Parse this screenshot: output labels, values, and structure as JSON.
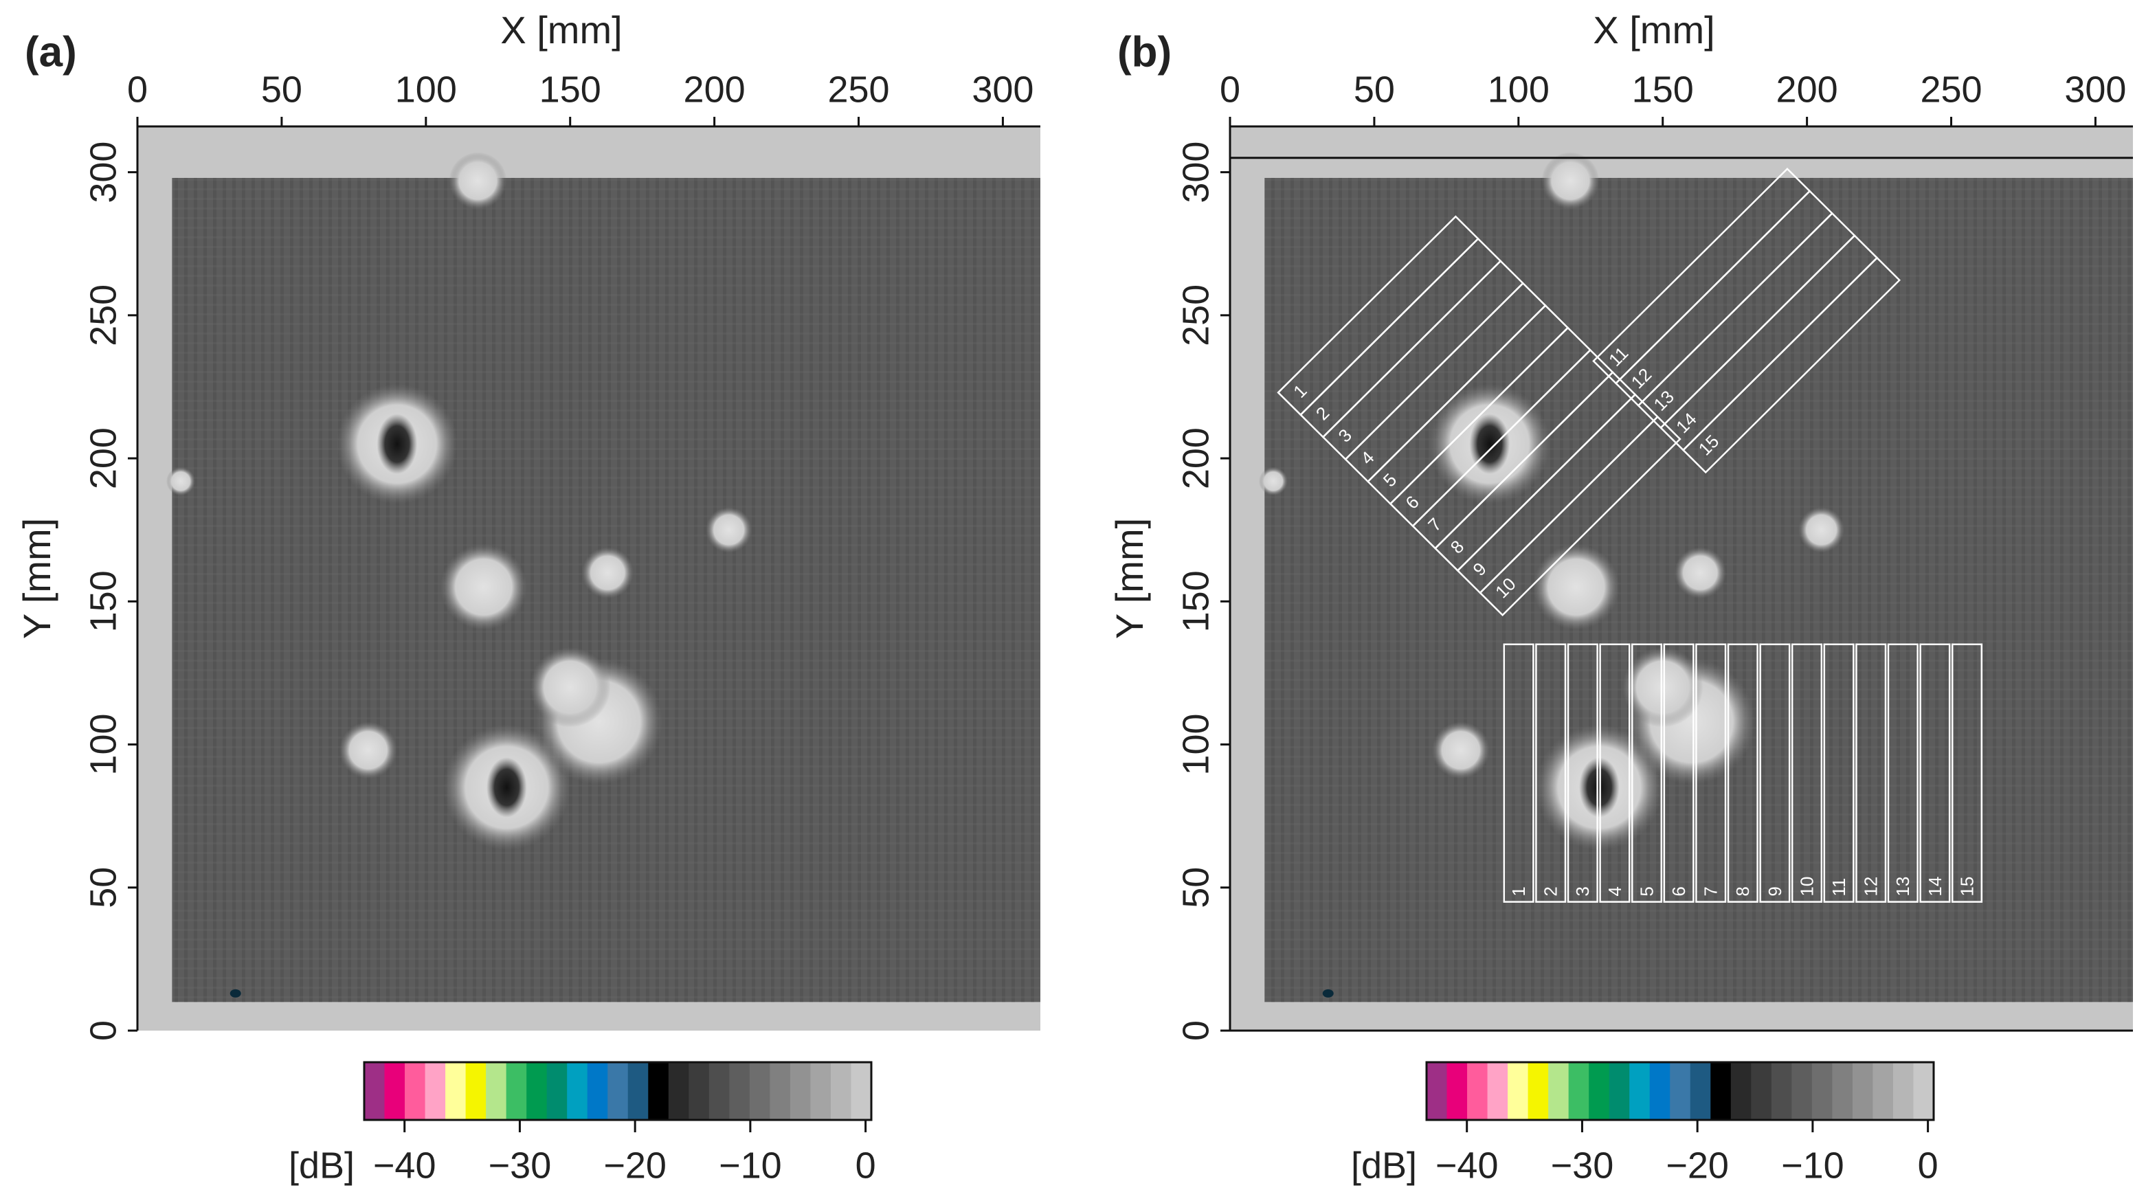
{
  "chart_data": [
    {
      "type": "image",
      "panel_label": "(a)",
      "xlabel": "X [mm]",
      "ylabel": "Y [mm]",
      "xlim": [
        0,
        313
      ],
      "ylim": [
        0,
        316
      ],
      "xticks": [
        0,
        50,
        100,
        150,
        200,
        250,
        300
      ],
      "yticks": [
        0,
        50,
        100,
        150,
        200,
        250,
        300
      ],
      "colorbar_label": "[dB]",
      "clim": [
        -43.5,
        0.5
      ],
      "cticks": [
        {
          "value": -40,
          "label": "−40"
        },
        {
          "value": -30,
          "label": "−30"
        },
        {
          "value": -20,
          "label": "−20"
        },
        {
          "value": -10,
          "label": "−10"
        },
        0
      ],
      "colorbar_colors": [
        "#9e2f86",
        "#e8007a",
        "#ff5c9c",
        "#ffa3c6",
        "#ffff9a",
        "#f5f500",
        "#b4e68c",
        "#3cbe64",
        "#009b50",
        "#008c6e",
        "#00a0c0",
        "#0078c8",
        "#3a78a8",
        "#1e5a82",
        "#000000",
        "#2a2a2a",
        "#3c3c3c",
        "#4e4e4e",
        "#5e5e5e",
        "#6e6e6e",
        "#808080",
        "#929292",
        "#a4a4a4",
        "#b6b6b6",
        "#c8c8c8"
      ]
    },
    {
      "type": "image",
      "panel_label": "(b)",
      "xlabel": "X [mm]",
      "ylabel": "Y [mm]",
      "xlim": [
        0,
        313
      ],
      "ylim": [
        0,
        316
      ],
      "xticks": [
        0,
        50,
        100,
        150,
        200,
        250,
        300
      ],
      "yticks": [
        0,
        50,
        100,
        150,
        200,
        250,
        300
      ],
      "colorbar_label": "[dB]",
      "clim": [
        -43.5,
        0.5
      ],
      "cticks": [
        {
          "value": -40,
          "label": "−40"
        },
        {
          "value": -30,
          "label": "−30"
        },
        {
          "value": -20,
          "label": "−20"
        },
        {
          "value": -10,
          "label": "−10"
        },
        0
      ],
      "colorbar_colors": [
        "#9e2f86",
        "#e8007a",
        "#ff5c9c",
        "#ffa3c6",
        "#ffff9a",
        "#f5f500",
        "#b4e68c",
        "#3cbe64",
        "#009b50",
        "#008c6e",
        "#00a0c0",
        "#0078c8",
        "#3a78a8",
        "#1e5a82",
        "#000000",
        "#2a2a2a",
        "#3c3c3c",
        "#4e4e4e",
        "#5e5e5e",
        "#6e6e6e",
        "#808080",
        "#929292",
        "#a4a4a4",
        "#b6b6b6",
        "#c8c8c8"
      ],
      "diagonal_strips_a": [
        "1",
        "2",
        "3",
        "4",
        "5",
        "6",
        "7",
        "8",
        "9",
        "10"
      ],
      "diagonal_strips_b": [
        "11",
        "12",
        "13",
        "14",
        "15"
      ],
      "vertical_strips": [
        "1",
        "2",
        "3",
        "4",
        "5",
        "6",
        "7",
        "8",
        "9",
        "10",
        "11",
        "12",
        "13",
        "14",
        "15"
      ]
    }
  ]
}
